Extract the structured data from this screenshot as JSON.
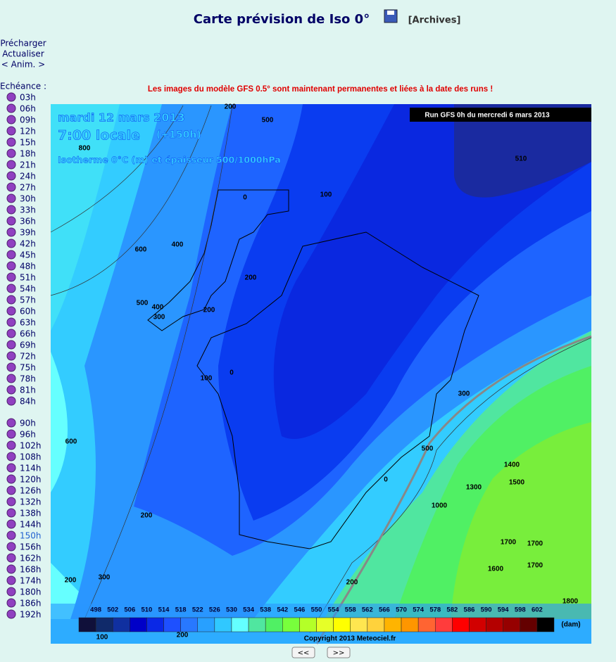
{
  "header": {
    "title": "Carte prévision de Iso 0°",
    "archives": "[Archives]"
  },
  "sidebar": {
    "controls": [
      "Précharger",
      "Actualiser",
      "< Anim. >"
    ],
    "label": "Echéance :",
    "hours": [
      "03h",
      "06h",
      "09h",
      "12h",
      "15h",
      "18h",
      "21h",
      "24h",
      "27h",
      "30h",
      "33h",
      "36h",
      "39h",
      "42h",
      "45h",
      "48h",
      "51h",
      "54h",
      "57h",
      "60h",
      "63h",
      "66h",
      "69h",
      "72h",
      "75h",
      "78h",
      "81h",
      "84h",
      "90h",
      "96h",
      "102h",
      "108h",
      "114h",
      "120h",
      "126h",
      "132h",
      "138h",
      "144h",
      "150h",
      "156h",
      "162h",
      "168h",
      "174h",
      "180h",
      "186h",
      "192h"
    ],
    "selected": 38
  },
  "notice": "Les images du modèle GFS 0.5° sont maintenant permanentes et liées à la date des runs !",
  "map": {
    "date": "mardi 12 mars 2013",
    "time": "7:00 locale",
    "lead": "(+150h)",
    "subtitle": "Isotherme 0°C (m) et épaisseur 500/1000hPa",
    "run": "Run GFS 0h du mercredi 6 mars 2013",
    "scale": [
      "498",
      "502",
      "506",
      "510",
      "514",
      "518",
      "522",
      "526",
      "530",
      "534",
      "538",
      "542",
      "546",
      "550",
      "554",
      "558",
      "562",
      "566",
      "570",
      "574",
      "578",
      "582",
      "586",
      "590",
      "594",
      "598",
      "602"
    ],
    "unit": "(dam)",
    "copyright": "Copyright 2013 Meteociel.fr",
    "labels": [
      "200",
      "500",
      "800",
      "510",
      "0",
      "100",
      "600",
      "400",
      "200",
      "500",
      "400",
      "300",
      "200",
      "0",
      "100",
      "600",
      "300",
      "1400",
      "1500",
      "1300",
      "200",
      "1000",
      "1700",
      "1700",
      "1600",
      "1700",
      "200",
      "300",
      "200",
      "1800",
      "100",
      "200",
      "0",
      "500"
    ]
  },
  "nav": {
    "prev": "<<",
    "next": ">>"
  }
}
